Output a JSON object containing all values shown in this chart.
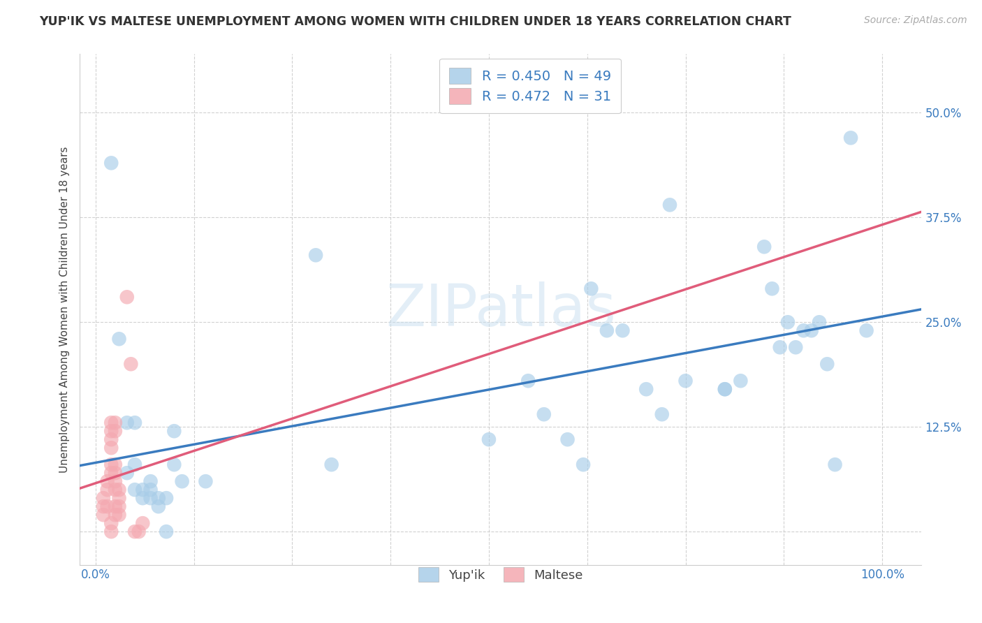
{
  "title": "YUP'IK VS MALTESE UNEMPLOYMENT AMONG WOMEN WITH CHILDREN UNDER 18 YEARS CORRELATION CHART",
  "source": "Source: ZipAtlas.com",
  "ylabel": "Unemployment Among Women with Children Under 18 years",
  "xlabel": "",
  "watermark_zip": "ZIP",
  "watermark_atlas": "atlas",
  "xlim": [
    -0.02,
    1.05
  ],
  "ylim": [
    -0.04,
    0.57
  ],
  "xticks": [
    0.0,
    0.125,
    0.25,
    0.375,
    0.5,
    0.625,
    0.75,
    0.875,
    1.0
  ],
  "xticklabels": [
    "0.0%",
    "",
    "",
    "",
    "",
    "",
    "",
    "",
    "100.0%"
  ],
  "yticks": [
    0.0,
    0.125,
    0.25,
    0.375,
    0.5
  ],
  "yticklabels": [
    "",
    "12.5%",
    "25.0%",
    "37.5%",
    "50.0%"
  ],
  "yup_color": "#a8cde8",
  "maltese_color": "#f4a8b0",
  "yup_line_color": "#3a7bbf",
  "maltese_line_color": "#e05c7a",
  "yup_R": 0.45,
  "yup_N": 49,
  "maltese_R": 0.472,
  "maltese_N": 31,
  "legend_label_yup": "Yup'ik",
  "legend_label_maltese": "Maltese",
  "tick_color": "#3a7bbf",
  "yup_points": [
    [
      0.02,
      0.44
    ],
    [
      0.03,
      0.23
    ],
    [
      0.04,
      0.13
    ],
    [
      0.04,
      0.07
    ],
    [
      0.05,
      0.13
    ],
    [
      0.05,
      0.08
    ],
    [
      0.05,
      0.05
    ],
    [
      0.06,
      0.05
    ],
    [
      0.06,
      0.04
    ],
    [
      0.07,
      0.04
    ],
    [
      0.07,
      0.05
    ],
    [
      0.07,
      0.06
    ],
    [
      0.08,
      0.03
    ],
    [
      0.08,
      0.04
    ],
    [
      0.09,
      0.04
    ],
    [
      0.09,
      0.0
    ],
    [
      0.1,
      0.08
    ],
    [
      0.1,
      0.12
    ],
    [
      0.11,
      0.06
    ],
    [
      0.14,
      0.06
    ],
    [
      0.28,
      0.33
    ],
    [
      0.3,
      0.08
    ],
    [
      0.5,
      0.11
    ],
    [
      0.55,
      0.18
    ],
    [
      0.57,
      0.14
    ],
    [
      0.6,
      0.11
    ],
    [
      0.62,
      0.08
    ],
    [
      0.63,
      0.29
    ],
    [
      0.65,
      0.24
    ],
    [
      0.67,
      0.24
    ],
    [
      0.7,
      0.17
    ],
    [
      0.72,
      0.14
    ],
    [
      0.73,
      0.39
    ],
    [
      0.75,
      0.18
    ],
    [
      0.8,
      0.17
    ],
    [
      0.8,
      0.17
    ],
    [
      0.82,
      0.18
    ],
    [
      0.85,
      0.34
    ],
    [
      0.86,
      0.29
    ],
    [
      0.87,
      0.22
    ],
    [
      0.88,
      0.25
    ],
    [
      0.89,
      0.22
    ],
    [
      0.9,
      0.24
    ],
    [
      0.91,
      0.24
    ],
    [
      0.92,
      0.25
    ],
    [
      0.93,
      0.2
    ],
    [
      0.94,
      0.08
    ],
    [
      0.96,
      0.47
    ],
    [
      0.98,
      0.24
    ]
  ],
  "maltese_points": [
    [
      0.01,
      0.02
    ],
    [
      0.01,
      0.03
    ],
    [
      0.01,
      0.04
    ],
    [
      0.015,
      0.03
    ],
    [
      0.015,
      0.05
    ],
    [
      0.015,
      0.06
    ],
    [
      0.02,
      0.07
    ],
    [
      0.02,
      0.08
    ],
    [
      0.02,
      0.1
    ],
    [
      0.02,
      0.11
    ],
    [
      0.02,
      0.12
    ],
    [
      0.02,
      0.13
    ],
    [
      0.02,
      0.0
    ],
    [
      0.02,
      0.01
    ],
    [
      0.025,
      0.02
    ],
    [
      0.025,
      0.03
    ],
    [
      0.025,
      0.05
    ],
    [
      0.025,
      0.06
    ],
    [
      0.025,
      0.07
    ],
    [
      0.025,
      0.08
    ],
    [
      0.025,
      0.12
    ],
    [
      0.025,
      0.13
    ],
    [
      0.03,
      0.02
    ],
    [
      0.03,
      0.03
    ],
    [
      0.03,
      0.04
    ],
    [
      0.03,
      0.05
    ],
    [
      0.04,
      0.28
    ],
    [
      0.045,
      0.2
    ],
    [
      0.05,
      0.0
    ],
    [
      0.055,
      0.0
    ],
    [
      0.06,
      0.01
    ]
  ]
}
